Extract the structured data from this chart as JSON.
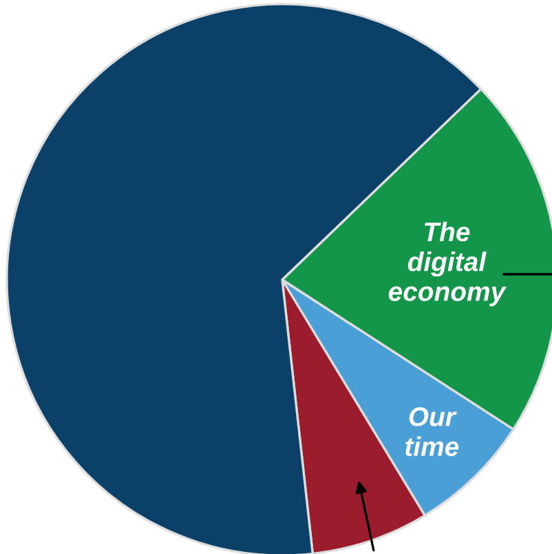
{
  "chart_data": {
    "type": "pie",
    "categories": [
      "The\ndigital\neconomy",
      "Our\ntime",
      null,
      null
    ],
    "values": [
      21.3,
      7.2,
      6.9,
      64.6
    ],
    "colors": [
      "#14964a",
      "#4a9fd6",
      "#9b1c2c",
      "#0b4168"
    ]
  }
}
